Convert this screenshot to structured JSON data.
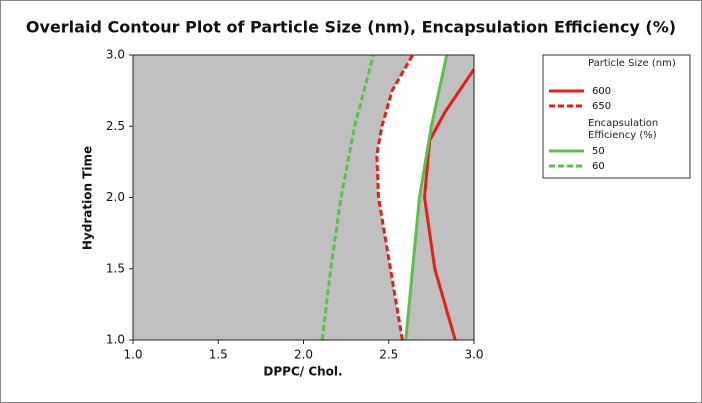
{
  "chart_data": {
    "type": "contour",
    "title": "Overlaid Contour Plot of Particle Size (nm), Encapsulation Efficiency (%)",
    "x_label": "DPPC/ Chol.",
    "y_label": "Hydration Time",
    "xlim": [
      1.0,
      3.0
    ],
    "ylim": [
      1.0,
      3.0
    ],
    "xticks": [
      {
        "value": 1.0,
        "label": "1.0"
      },
      {
        "value": 1.5,
        "label": "1.5"
      },
      {
        "value": 2.0,
        "label": "2.0"
      },
      {
        "value": 2.5,
        "label": "2.5"
      },
      {
        "value": 3.0,
        "label": "3.0"
      }
    ],
    "yticks": [
      {
        "value": 1.0,
        "label": "1.0"
      },
      {
        "value": 1.5,
        "label": "1.5"
      },
      {
        "value": 2.0,
        "label": "2.0"
      },
      {
        "value": 2.5,
        "label": "2.5"
      },
      {
        "value": 3.0,
        "label": "3.0"
      }
    ],
    "background_color": "#c0c0c0",
    "feasible_color": "#ffffff",
    "groups": [
      {
        "title": "Particle Size (nm)",
        "color": "#e0201c",
        "series": [
          {
            "name": "600",
            "style": "solid",
            "x": [
              2.89,
              2.77,
              2.71,
              2.74,
              2.83,
              3.0
            ],
            "y": [
              1.0,
              1.5,
              2.0,
              2.4,
              2.6,
              2.9
            ]
          },
          {
            "name": "650",
            "style": "dashed",
            "x": [
              2.58,
              2.51,
              2.44,
              2.43,
              2.46,
              2.52,
              2.64
            ],
            "y": [
              1.0,
              1.5,
              2.0,
              2.3,
              2.5,
              2.75,
              3.0
            ]
          }
        ]
      },
      {
        "title": "Encapsulation Efficiency (%)",
        "color": "#5cbf4a",
        "series": [
          {
            "name": "50",
            "style": "solid",
            "x": [
              2.6,
              2.64,
              2.68,
              2.75,
              2.84
            ],
            "y": [
              1.0,
              1.5,
              2.0,
              2.5,
              3.0
            ]
          },
          {
            "name": "60",
            "style": "dashed",
            "x": [
              2.11,
              2.16,
              2.22,
              2.3,
              2.41
            ],
            "y": [
              1.0,
              1.5,
              2.0,
              2.5,
              3.0
            ]
          }
        ]
      }
    ]
  }
}
